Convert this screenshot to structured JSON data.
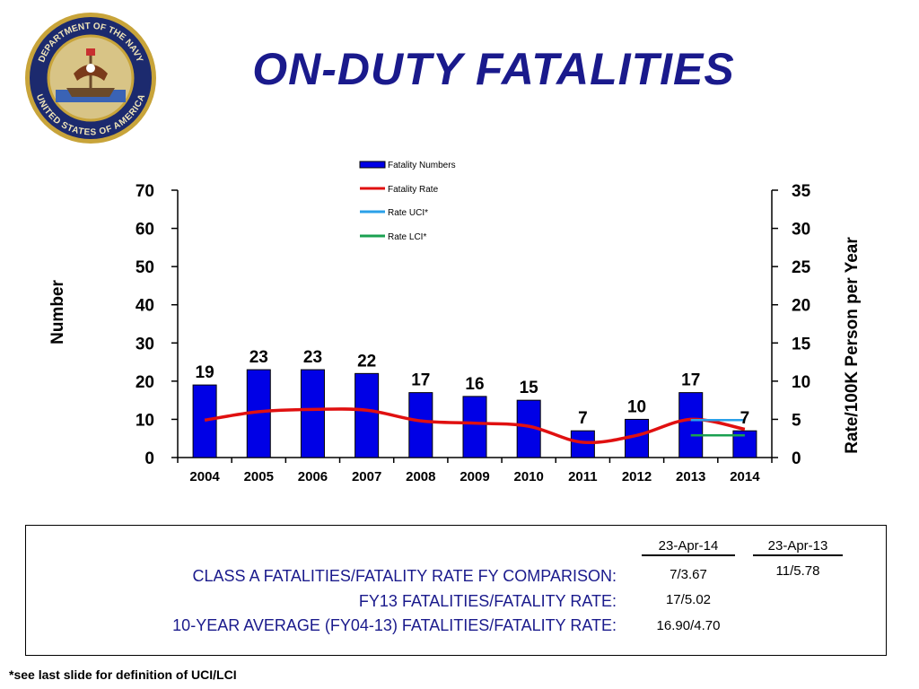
{
  "slide": {
    "title": "ON-DUTY  FATALITIES",
    "seal_text_top": "DEPARTMENT OF THE NAVY",
    "seal_text_bottom": "UNITED STATES OF AMERICA",
    "footnote": "*see last slide for definition of UCI/LCI"
  },
  "colors": {
    "title": "#1a1a8c",
    "bar": "#0000e6",
    "rate_line": "#e01010",
    "uci": "#2aa0e8",
    "lci": "#1aa050"
  },
  "chart_data": {
    "type": "bar",
    "categories": [
      "2004",
      "2005",
      "2006",
      "2007",
      "2008",
      "2009",
      "2010",
      "2011",
      "2012",
      "2013",
      "2014"
    ],
    "ylabel": "Number",
    "y2label": "Rate/100K Person per Year",
    "ylim": [
      0,
      70
    ],
    "y2lim": [
      0,
      35
    ],
    "yticks": [
      "0",
      "10",
      "20",
      "30",
      "40",
      "50",
      "60",
      "70"
    ],
    "y2ticks": [
      "0",
      "5",
      "10",
      "15",
      "20",
      "25",
      "30",
      "35"
    ],
    "legend_position": "top-center",
    "series": [
      {
        "name": "Fatality Numbers",
        "kind": "bar",
        "axis": "left",
        "values": [
          19,
          23,
          23,
          22,
          17,
          16,
          15,
          7,
          10,
          17,
          7
        ],
        "labels": [
          "19",
          "23",
          "23",
          "22",
          "17",
          "16",
          "15",
          "7",
          "10",
          "17",
          "7"
        ]
      },
      {
        "name": "Fatality Rate",
        "kind": "line",
        "axis": "right",
        "values": [
          4.9,
          6.0,
          6.3,
          6.2,
          4.8,
          4.5,
          4.1,
          2.0,
          2.9,
          5.0,
          3.7
        ]
      },
      {
        "name": "Rate UCI*",
        "kind": "line",
        "axis": "right",
        "x": [
          "2013",
          "2014"
        ],
        "values": [
          4.9,
          4.9
        ]
      },
      {
        "name": "Rate LCI*",
        "kind": "line",
        "axis": "right",
        "x": [
          "2013",
          "2014"
        ],
        "values": [
          2.9,
          2.9
        ]
      }
    ]
  },
  "comparison": {
    "col1_header": "23-Apr-14",
    "col2_header": "23-Apr-13",
    "rows": [
      {
        "label": "CLASS A FATALITIES/FATALITY RATE FY COMPARISON:",
        "col1": "7/3.67",
        "col2": "11/5.78"
      },
      {
        "label": "FY13 FATALITIES/FATALITY RATE:",
        "col1": "17/5.02",
        "col2": ""
      },
      {
        "label": "10-YEAR AVERAGE (FY04-13) FATALITIES/FATALITY RATE:",
        "col1": "16.90/4.70",
        "col2": ""
      }
    ]
  }
}
